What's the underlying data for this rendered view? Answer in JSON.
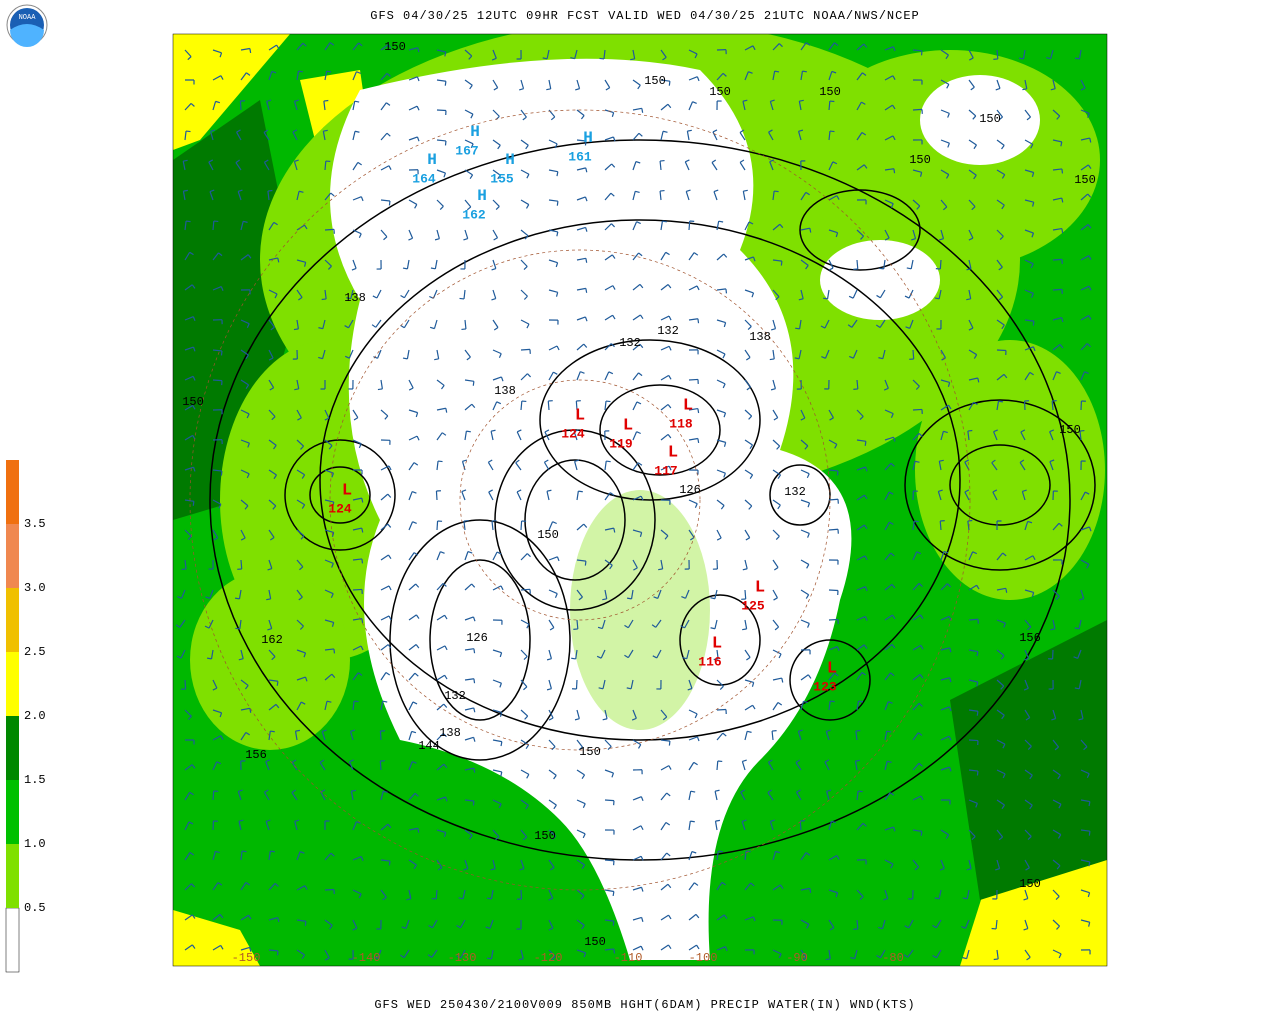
{
  "header": {
    "title": "GFS 04/30/25 12UTC 09HR FCST VALID WED 04/30/25 21UTC NOAA/NWS/NCEP"
  },
  "logo": {
    "text": "NOAA"
  },
  "footer": {
    "caption": "GFS WED 250430/2100V009 850MB HGHT(6DAM) PRECIP WATER(IN) WND(KTS)"
  },
  "legend": {
    "labels": [
      "0.5",
      "1.0",
      "1.5",
      "2.0",
      "2.5",
      "3.0",
      "3.5"
    ]
  },
  "map": {
    "contour_labels": [
      "150",
      "150",
      "150",
      "150",
      "150",
      "150",
      "150",
      "138",
      "132",
      "138",
      "138",
      "150",
      "150",
      "132",
      "150",
      "156",
      "162",
      "126",
      "132",
      "138",
      "144",
      "156",
      "150",
      "150",
      "150",
      "150",
      "132",
      "126"
    ],
    "lows": [
      {
        "symbol": "L",
        "value": "124"
      },
      {
        "symbol": "L",
        "value": "119"
      },
      {
        "symbol": "L",
        "value": "118"
      },
      {
        "symbol": "L",
        "value": "117"
      },
      {
        "symbol": "L",
        "value": "125"
      },
      {
        "symbol": "L",
        "value": "116"
      },
      {
        "symbol": "L",
        "value": "123"
      },
      {
        "symbol": "L",
        "value": "124"
      }
    ],
    "highs": [
      {
        "symbol": "H",
        "value": "167"
      },
      {
        "symbol": "H",
        "value": "164"
      },
      {
        "symbol": "H",
        "value": "161"
      },
      {
        "symbol": "H",
        "value": "162"
      },
      {
        "symbol": "H",
        "value": "155"
      }
    ],
    "longitude_labels": [
      "-150",
      "-140",
      "-130",
      "-120",
      "-110",
      "-100",
      "-90",
      "-80"
    ]
  }
}
